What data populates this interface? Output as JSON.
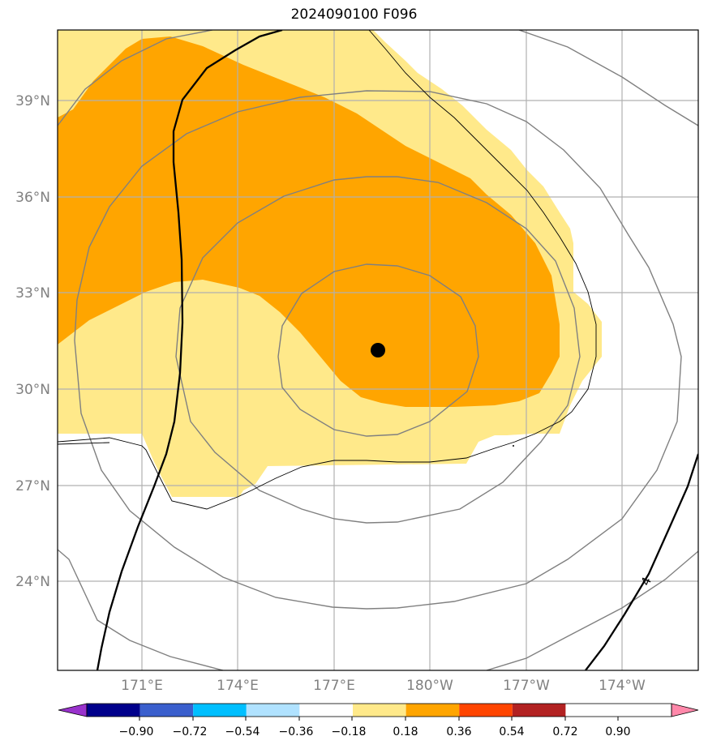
{
  "title": "2024090100 F096",
  "lat_labels": [
    "39°N",
    "36°N",
    "33°N",
    "30°N",
    "27°N",
    "24°N"
  ],
  "lon_labels": [
    "171°E",
    "174°E",
    "177°E",
    "180°W",
    "177°W",
    "174°W"
  ],
  "contour_label": "4",
  "colorbar": {
    "tick_labels": [
      "−0.90",
      "−0.72",
      "−0.54",
      "−0.36",
      "−0.18",
      "0.18",
      "0.36",
      "0.54",
      "0.72",
      "0.90"
    ],
    "colors": [
      "#9932cc",
      "#00008b",
      "#3a5fcd",
      "#00bfff",
      "#b0e2ff",
      "#ffffff",
      "#ffe98a",
      "#ffa500",
      "#ff4500",
      "#b22222",
      "#ff88aa"
    ]
  },
  "fill_colors": {
    "light": "#ffe98a",
    "dark": "#ffa500"
  },
  "center_marker": {
    "lat": 31.2,
    "lon": 178.4
  }
}
